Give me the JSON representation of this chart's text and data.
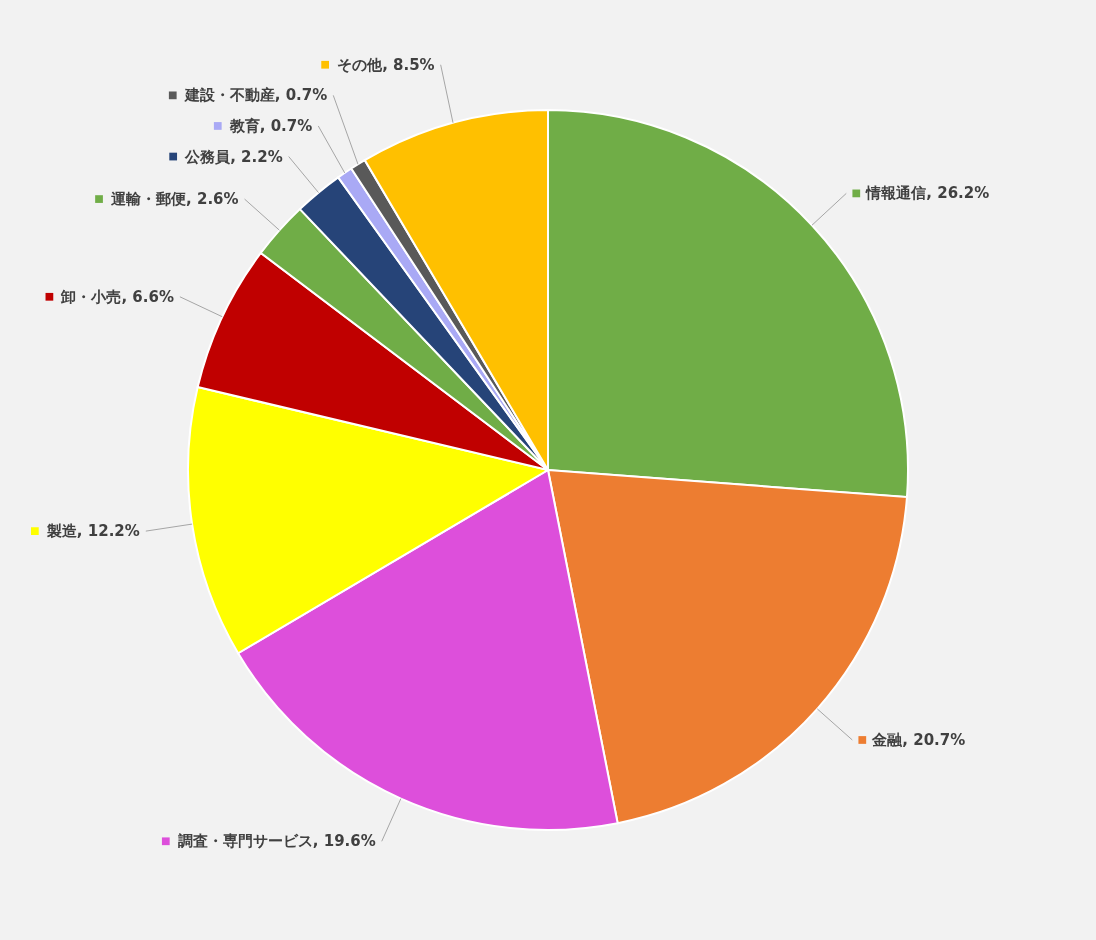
{
  "chart_data": {
    "type": "pie",
    "categories": [
      "情報通信",
      "金融",
      "調査・専門サービス",
      "製造",
      "卸・小売",
      "運輸・郵便",
      "公務員",
      "教育",
      "建設・不動産",
      "その他"
    ],
    "values": [
      26.2,
      20.7,
      19.6,
      12.2,
      6.6,
      2.6,
      2.2,
      0.7,
      0.7,
      8.5
    ],
    "colors": [
      "#70ad47",
      "#ed7d31",
      "#dd4fdb",
      "#ffff00",
      "#c00000",
      "#70ad47",
      "#264478",
      "#a9a9f5",
      "#595959",
      "#ffc000"
    ],
    "legend": "left",
    "value_labels": [
      "26.2%",
      "20.7%",
      "19.6%",
      "12.2%",
      "6.6%",
      "2.6%",
      "2.2%",
      "0.7%",
      "0.7%",
      "8.5%"
    ]
  }
}
